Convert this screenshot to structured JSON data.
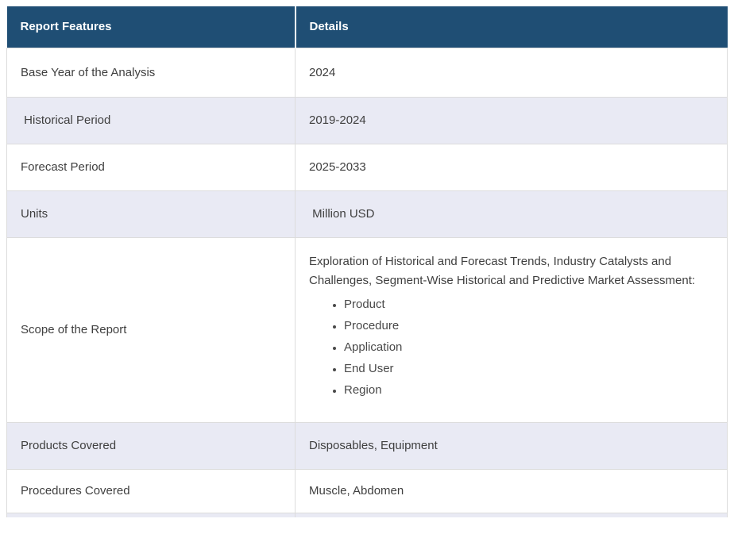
{
  "table": {
    "columns": {
      "features": "Report Features",
      "details": "Details"
    },
    "rows": [
      {
        "feature": "Base Year of the Analysis",
        "detail": "2024"
      },
      {
        "feature": " Historical Period",
        "detail": "2019-2024"
      },
      {
        "feature": "Forecast Period",
        "detail": "2025-2033"
      },
      {
        "feature": "Units",
        "detail": " Million USD"
      },
      {
        "feature": "Scope of the Report",
        "detail_intro": "Exploration of Historical and Forecast Trends, Industry Catalysts and Challenges, Segment-Wise Historical and Predictive Market Assessment:",
        "detail_bullets": [
          "Product",
          "Procedure",
          "Application",
          "End User",
          "Region"
        ]
      },
      {
        "feature": "Products Covered",
        "detail": "Disposables, Equipment"
      },
      {
        "feature": "Procedures Covered",
        "detail": "Muscle, Abdomen"
      }
    ],
    "colors": {
      "header_bg": "#1F4E74",
      "header_text": "#FFFFFF",
      "alt_row_bg": "#E9EAF4",
      "row_bg": "#FFFFFF",
      "border": "#DCDCDC",
      "text": "#3F3F3F"
    }
  }
}
